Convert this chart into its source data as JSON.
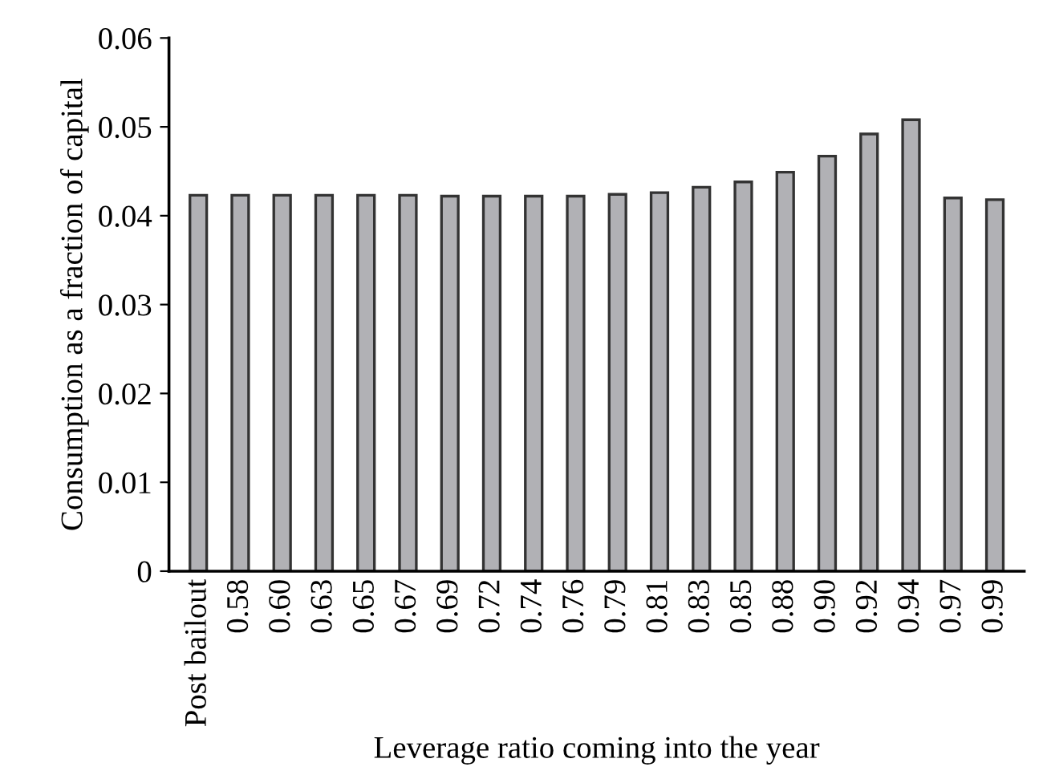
{
  "chart_data": {
    "type": "bar",
    "xlabel": "Leverage ratio coming into the year",
    "ylabel": "Consumption as a fraction of capital",
    "categories": [
      "Post bailout",
      "0.58",
      "0.60",
      "0.63",
      "0.65",
      "0.67",
      "0.69",
      "0.72",
      "0.74",
      "0.76",
      "0.79",
      "0.81",
      "0.83",
      "0.85",
      "0.88",
      "0.90",
      "0.92",
      "0.94",
      "0.97",
      "0.99"
    ],
    "values": [
      0.0423,
      0.0423,
      0.0423,
      0.0423,
      0.0423,
      0.0423,
      0.0422,
      0.0422,
      0.0422,
      0.0422,
      0.0424,
      0.0426,
      0.0432,
      0.0438,
      0.0449,
      0.0467,
      0.0492,
      0.0508,
      0.042,
      0.0418
    ],
    "color": "#b1b1b5",
    "ylim": [
      0,
      0.06
    ],
    "yticks": [
      0,
      0.01,
      0.02,
      0.03,
      0.04,
      0.05,
      0.06
    ],
    "grid": false,
    "legend": false
  }
}
